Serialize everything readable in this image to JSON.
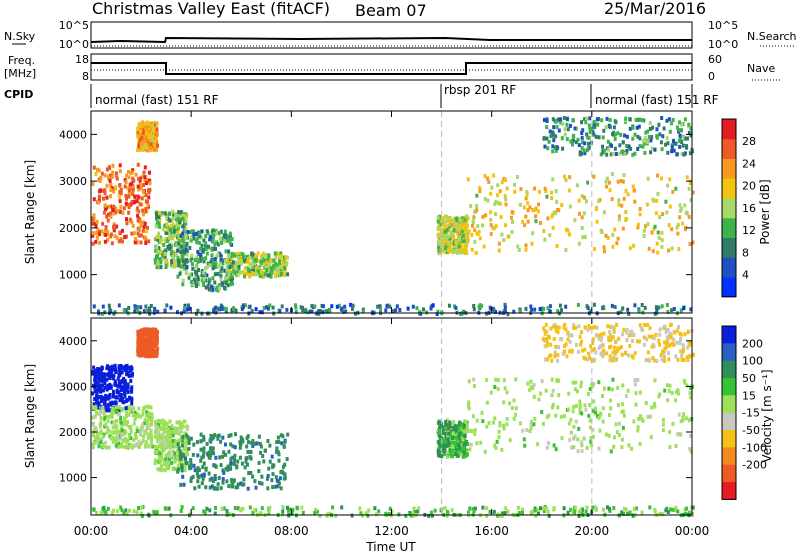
{
  "header": {
    "title": "Christmas Valley East (fitACF)",
    "beam": "Beam 07",
    "date": "25/Mar/2016"
  },
  "top_strips": {
    "nsky": {
      "label": "N.Sky",
      "ticks": [
        "10^5",
        "10^0"
      ],
      "right_label": "N.Search",
      "right_ticks": [
        "10^5",
        "10^0"
      ]
    },
    "freq": {
      "label_lines": [
        "Freq.",
        "[MHz]"
      ],
      "ticks": [
        "18",
        "8"
      ],
      "right_label": "Nave",
      "right_ticks": [
        "60",
        "0"
      ]
    },
    "cpid": {
      "label": "CPID",
      "segments": [
        "normal (fast) 151 RF",
        "rbsp 201 RF",
        "normal (fast) 151 RF"
      ]
    }
  },
  "chart_data": [
    {
      "type": "heatmap",
      "panel": "power",
      "xlabel": "Time UT",
      "ylabel": "Slant Range [km]",
      "x_ticks": [
        "00:00",
        "04:00",
        "08:00",
        "12:00",
        "16:00",
        "20:00",
        "00:00"
      ],
      "xlim_hours": [
        0,
        24
      ],
      "y_ticks": [
        1000,
        2000,
        3000,
        4000
      ],
      "ylim": [
        180,
        4500
      ],
      "colorbar": {
        "label": "Power [dB]",
        "ticks": [
          4,
          8,
          12,
          16,
          20,
          24,
          28
        ],
        "range": [
          0,
          32
        ],
        "colors": [
          "#0033ff",
          "#2050c0",
          "#2e7d68",
          "#3cb44b",
          "#a6d96a",
          "#f2c40f",
          "#f79a1e",
          "#ee5a24",
          "#e51c23"
        ]
      },
      "cpid_boundaries_hours": [
        14,
        20
      ],
      "regions": [
        {
          "t": [
            0.0,
            2.3
          ],
          "r": [
            1700,
            3400
          ],
          "level": 26
        },
        {
          "t": [
            1.8,
            2.6
          ],
          "r": [
            3700,
            4300
          ],
          "level": 22
        },
        {
          "t": [
            2.5,
            3.8
          ],
          "r": [
            1200,
            2400
          ],
          "level": 14
        },
        {
          "t": [
            3.4,
            5.6
          ],
          "r": [
            700,
            2000
          ],
          "level": 11
        },
        {
          "t": [
            5.3,
            7.8
          ],
          "r": [
            1000,
            1500
          ],
          "level": 15
        },
        {
          "t": [
            13.8,
            15.0
          ],
          "r": [
            1500,
            2300
          ],
          "level": 17
        },
        {
          "t": [
            15.0,
            24.0
          ],
          "r": [
            1500,
            3200
          ],
          "level": 19
        },
        {
          "t": [
            18.0,
            24.0
          ],
          "r": [
            3600,
            4400
          ],
          "level": 10
        },
        {
          "t": [
            0.0,
            24.0
          ],
          "r": [
            200,
            400
          ],
          "level": 8
        }
      ]
    },
    {
      "type": "heatmap",
      "panel": "velocity",
      "xlabel": "Time UT",
      "ylabel": "Slant Range [km]",
      "x_ticks": [
        "00:00",
        "04:00",
        "08:00",
        "12:00",
        "16:00",
        "20:00",
        "00:00"
      ],
      "xlim_hours": [
        0,
        24
      ],
      "y_ticks": [
        1000,
        2000,
        3000,
        4000
      ],
      "ylim": [
        180,
        4500
      ],
      "colorbar": {
        "label": "Velocity [m s⁻¹]",
        "ticks": [
          200,
          100,
          50,
          15,
          -15,
          -50,
          -100,
          -200
        ],
        "colors": [
          "#0a1fd9",
          "#2a5ec0",
          "#2e8f5a",
          "#36c236",
          "#9fe05a",
          "#c8c8c0",
          "#f5c116",
          "#f58a1e",
          "#ee5a24",
          "#e51c23"
        ]
      },
      "cpid_boundaries_hours": [
        14,
        20
      ],
      "regions": [
        {
          "t": [
            0.0,
            1.6
          ],
          "r": [
            2500,
            3500
          ],
          "velocity": 230
        },
        {
          "t": [
            0.0,
            2.4
          ],
          "r": [
            1700,
            2600
          ],
          "velocity": 0
        },
        {
          "t": [
            1.8,
            2.6
          ],
          "r": [
            3700,
            4300
          ],
          "velocity": -220
        },
        {
          "t": [
            2.5,
            3.8
          ],
          "r": [
            1200,
            2300
          ],
          "velocity": 0
        },
        {
          "t": [
            3.4,
            7.8
          ],
          "r": [
            800,
            2000
          ],
          "velocity": 60
        },
        {
          "t": [
            13.8,
            15.0
          ],
          "r": [
            1500,
            2300
          ],
          "velocity": 30
        },
        {
          "t": [
            15.0,
            24.0
          ],
          "r": [
            1600,
            3200
          ],
          "velocity": 0
        },
        {
          "t": [
            18.0,
            24.0
          ],
          "r": [
            3600,
            4400
          ],
          "velocity": -40
        },
        {
          "t": [
            0.0,
            24.0
          ],
          "r": [
            200,
            400
          ],
          "velocity": 20
        }
      ]
    }
  ]
}
